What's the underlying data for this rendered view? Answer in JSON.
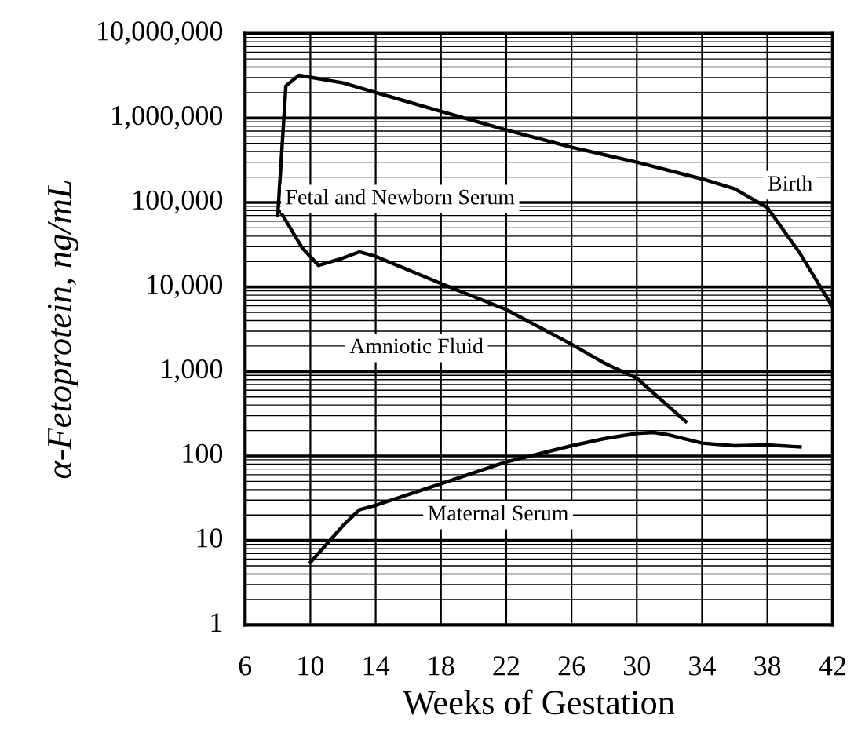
{
  "chart_data": {
    "type": "line",
    "xlabel": "Weeks of Gestation",
    "ylabel": "α-Fetoprotein, ng/mL",
    "log": "y",
    "grid": true,
    "legend": false,
    "marker": "none",
    "line_style": "solid",
    "xlim": [
      6,
      42
    ],
    "xticks": [
      6,
      10,
      14,
      18,
      22,
      26,
      30,
      34,
      38,
      42
    ],
    "ylim": [
      1,
      10000000
    ],
    "yticks": [
      1,
      10,
      100,
      {
        "value": 1000,
        "label": "1,000"
      },
      {
        "value": 10000,
        "label": "10,000"
      },
      {
        "value": 100000,
        "label": "100,000"
      },
      {
        "value": 1000000,
        "label": "1,000,000"
      },
      {
        "value": 10000000,
        "label": "10,000,000"
      }
    ],
    "annotations": [
      "Birth"
    ],
    "series": [
      {
        "name": "Fetal and Newborn Serum",
        "color": "#000000",
        "x": [
          8,
          8.5,
          9.3,
          12,
          14,
          18,
          22,
          26,
          30,
          34,
          36,
          38,
          40,
          42
        ],
        "values": [
          70000,
          2400000,
          3200000,
          2600000,
          2000000,
          1200000,
          720000,
          450000,
          300000,
          190000,
          145000,
          87000,
          25000,
          5800
        ]
      },
      {
        "name": "Amniotic Fluid",
        "color": "#000000",
        "x": [
          8.2,
          9.5,
          10.5,
          12,
          13,
          14,
          18,
          22,
          26,
          28,
          30,
          33
        ],
        "values": [
          76000,
          29000,
          18000,
          22000,
          26000,
          23000,
          11000,
          5400,
          2100,
          1260,
          830,
          255
        ]
      },
      {
        "name": "Maternal Serum",
        "color": "#000000",
        "x": [
          10,
          12,
          13,
          14,
          16,
          18,
          22,
          26,
          28,
          30,
          31,
          32,
          34,
          36,
          38,
          40
        ],
        "values": [
          5.5,
          15,
          23,
          26,
          35,
          47,
          85,
          132,
          160,
          185,
          190,
          177,
          142,
          132,
          135,
          128
        ]
      }
    ]
  }
}
